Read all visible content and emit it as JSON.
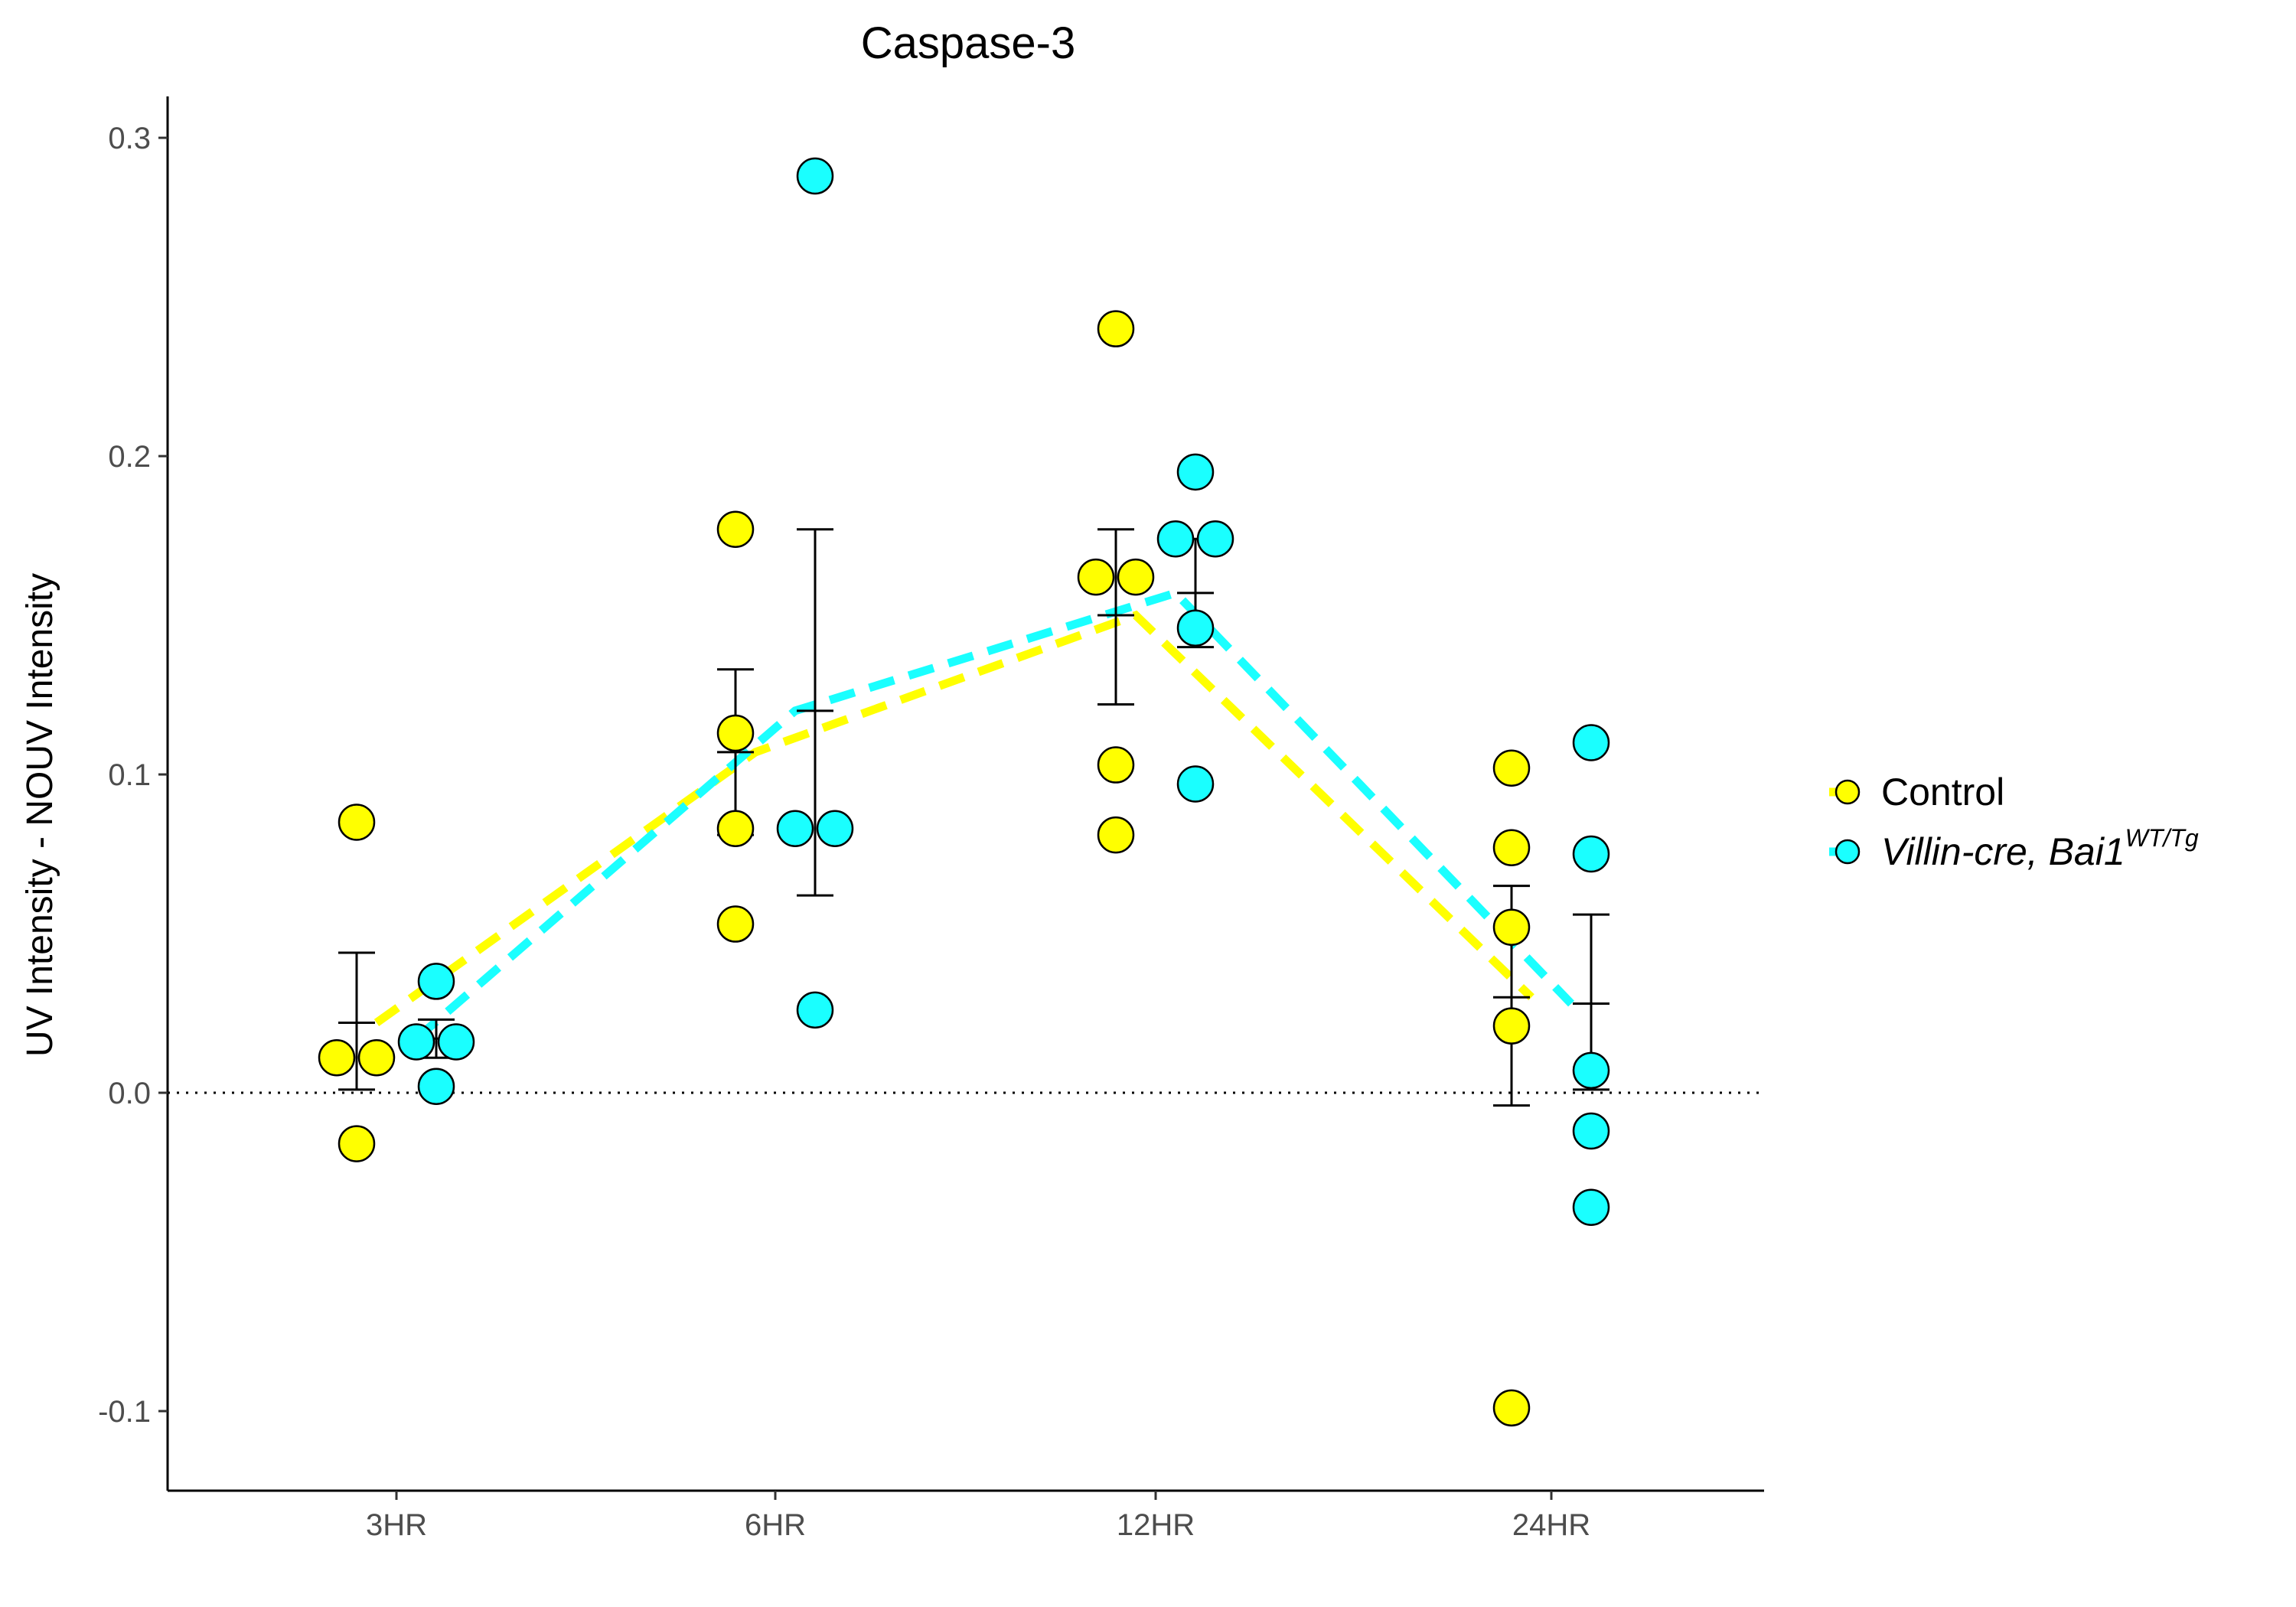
{
  "chart_data": {
    "type": "scatter",
    "title": "Caspase-3",
    "xlabel": "",
    "ylabel": "UV Intensity - NOUV Intensity",
    "categories": [
      "3HR",
      "6HR",
      "12HR",
      "24HR"
    ],
    "ylim": [
      -0.125,
      0.313
    ],
    "yticks": [
      -0.1,
      0.0,
      0.1,
      0.2,
      0.3
    ],
    "ytick_labels": [
      "-0.1",
      "0.0",
      "0.1",
      "0.2",
      "0.3"
    ],
    "reference_line": {
      "y": 0.0,
      "style": "dotted"
    },
    "grid": false,
    "legend_position": "right",
    "series": [
      {
        "name": "Control",
        "color": "#ffff00",
        "points": [
          {
            "category": "3HR",
            "y": 0.085
          },
          {
            "category": "3HR",
            "y": 0.011
          },
          {
            "category": "3HR",
            "y": 0.011
          },
          {
            "category": "3HR",
            "y": -0.016
          },
          {
            "category": "6HR",
            "y": 0.177
          },
          {
            "category": "6HR",
            "y": 0.113
          },
          {
            "category": "6HR",
            "y": 0.083
          },
          {
            "category": "6HR",
            "y": 0.053
          },
          {
            "category": "12HR",
            "y": 0.24
          },
          {
            "category": "12HR",
            "y": 0.162
          },
          {
            "category": "12HR",
            "y": 0.162
          },
          {
            "category": "12HR",
            "y": 0.103
          },
          {
            "category": "12HR",
            "y": 0.081
          },
          {
            "category": "24HR",
            "y": 0.102
          },
          {
            "category": "24HR",
            "y": 0.077
          },
          {
            "category": "24HR",
            "y": 0.052
          },
          {
            "category": "24HR",
            "y": 0.021
          },
          {
            "category": "24HR",
            "y": -0.099
          }
        ],
        "mean": [
          0.022,
          0.107,
          0.15,
          0.03
        ],
        "error_low": [
          0.001,
          0.081,
          0.122,
          -0.004
        ],
        "error_high": [
          0.044,
          0.133,
          0.177,
          0.065
        ]
      },
      {
        "name": "Villin-cre, Bai1",
        "name_superscript": "WT/Tg",
        "color": "#1affff",
        "points": [
          {
            "category": "3HR",
            "y": 0.035
          },
          {
            "category": "3HR",
            "y": 0.016
          },
          {
            "category": "3HR",
            "y": 0.016
          },
          {
            "category": "3HR",
            "y": 0.002
          },
          {
            "category": "6HR",
            "y": 0.288
          },
          {
            "category": "6HR",
            "y": 0.083
          },
          {
            "category": "6HR",
            "y": 0.083
          },
          {
            "category": "6HR",
            "y": 0.026
          },
          {
            "category": "12HR",
            "y": 0.195
          },
          {
            "category": "12HR",
            "y": 0.174
          },
          {
            "category": "12HR",
            "y": 0.174
          },
          {
            "category": "12HR",
            "y": 0.146
          },
          {
            "category": "12HR",
            "y": 0.097
          },
          {
            "category": "24HR",
            "y": 0.11
          },
          {
            "category": "24HR",
            "y": 0.075
          },
          {
            "category": "24HR",
            "y": 0.007
          },
          {
            "category": "24HR",
            "y": -0.012
          },
          {
            "category": "24HR",
            "y": -0.036
          }
        ],
        "mean": [
          0.017,
          0.12,
          0.157,
          0.028
        ],
        "error_low": [
          0.011,
          0.062,
          0.14,
          0.001
        ],
        "error_high": [
          0.023,
          0.177,
          0.174,
          0.056
        ]
      }
    ]
  }
}
